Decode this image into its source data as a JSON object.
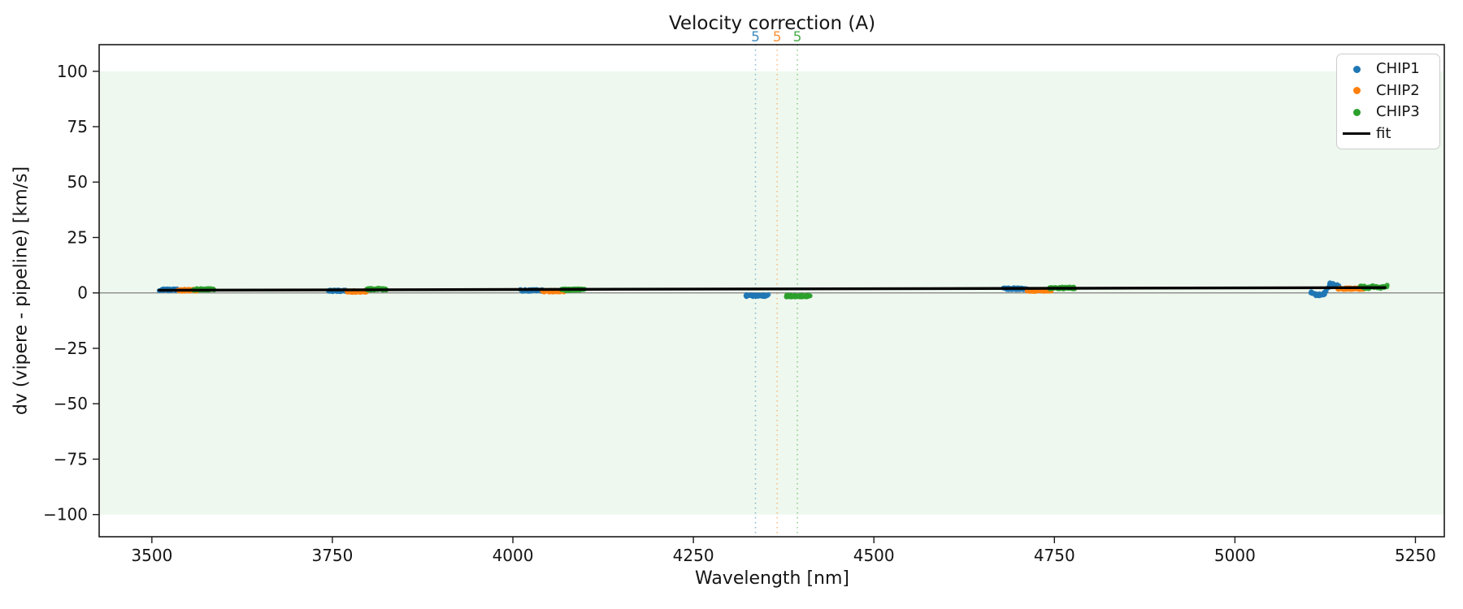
{
  "chart_data": {
    "type": "scatter",
    "title": "Velocity correction (A)",
    "xlabel": "Wavelength [nm]",
    "ylabel": "dv (vipere - pipeline) [km/s]",
    "xlim": [
      3427,
      5290
    ],
    "ylim": [
      -110,
      112
    ],
    "xticks": [
      3500,
      3750,
      4000,
      4250,
      4500,
      4750,
      5000,
      5250
    ],
    "xtick_labels": [
      "3500",
      "3750",
      "4000",
      "4250",
      "4500",
      "4750",
      "5000",
      "5250"
    ],
    "yticks": [
      100,
      75,
      50,
      25,
      0,
      -25,
      -50,
      -75,
      -100
    ],
    "ytick_labels": [
      "100",
      "75",
      "50",
      "25",
      "0",
      "−25",
      "−50",
      "−75",
      "−100"
    ],
    "grid": false,
    "legend_position": "upper right",
    "shaded_band": {
      "ymin": -100,
      "ymax": 100,
      "color": "rgba(44,160,44,0.08)"
    },
    "zero_line": {
      "y": 0,
      "color": "#8a8a8a"
    },
    "vlines": [
      {
        "x": 4336,
        "label": "5",
        "series": "CHIP1",
        "color": "#1f77b4"
      },
      {
        "x": 4366,
        "label": "5",
        "series": "CHIP2",
        "color": "#ff7f0e"
      },
      {
        "x": 4394,
        "label": "5",
        "series": "CHIP3",
        "color": "#2ca02c"
      }
    ],
    "series": [
      {
        "name": "CHIP1",
        "color": "#1f77b4",
        "clusters": [
          {
            "x_range": [
              3512,
              3536
            ],
            "dv": 1.4
          },
          {
            "x_range": [
              3745,
              3770
            ],
            "dv": 0.9
          },
          {
            "x_range": [
              4012,
              4042
            ],
            "dv": 1.1
          },
          {
            "x_range": [
              4322,
              4352
            ],
            "dv": -1.2
          },
          {
            "x_range": [
              4680,
              4713
            ],
            "dv": 1.9
          },
          {
            "x_range": [
              5105,
              5143
            ],
            "dv": 1.0,
            "profile": [
              0.3,
              -1.0,
              -0.5,
              4.2,
              3.0
            ]
          }
        ]
      },
      {
        "name": "CHIP2",
        "color": "#ff7f0e",
        "clusters": [
          {
            "x_range": [
              3537,
              3563
            ],
            "dv": 1.2
          },
          {
            "x_range": [
              3771,
              3798
            ],
            "dv": 0.6
          },
          {
            "x_range": [
              4040,
              4070
            ],
            "dv": 0.8
          },
          {
            "x_range": [
              4712,
              4745
            ],
            "dv": 1.1
          },
          {
            "x_range": [
              5142,
              5177
            ],
            "dv": 1.9
          }
        ]
      },
      {
        "name": "CHIP3",
        "color": "#2ca02c",
        "clusters": [
          {
            "x_range": [
              3559,
              3585
            ],
            "dv": 1.6
          },
          {
            "x_range": [
              3797,
              3825
            ],
            "dv": 1.7
          },
          {
            "x_range": [
              4068,
              4098
            ],
            "dv": 1.4
          },
          {
            "x_range": [
              4378,
              4411
            ],
            "dv": -1.4
          },
          {
            "x_range": [
              4743,
              4777
            ],
            "dv": 2.2
          },
          {
            "x_range": [
              5175,
              5210
            ],
            "dv": 2.6,
            "profile": [
              2.9,
              2.2,
              2.9,
              2.3,
              3.1
            ]
          }
        ]
      }
    ],
    "fit": {
      "label": "fit",
      "color": "#000000",
      "x": [
        3510,
        5208
      ],
      "y": [
        1.2,
        2.4
      ]
    }
  },
  "legend": {
    "entries": [
      {
        "label": "CHIP1",
        "color": "#1f77b4",
        "marker": "dot"
      },
      {
        "label": "CHIP2",
        "color": "#ff7f0e",
        "marker": "dot"
      },
      {
        "label": "CHIP3",
        "color": "#2ca02c",
        "marker": "dot"
      },
      {
        "label": "fit",
        "color": "#000000",
        "marker": "line"
      }
    ]
  }
}
